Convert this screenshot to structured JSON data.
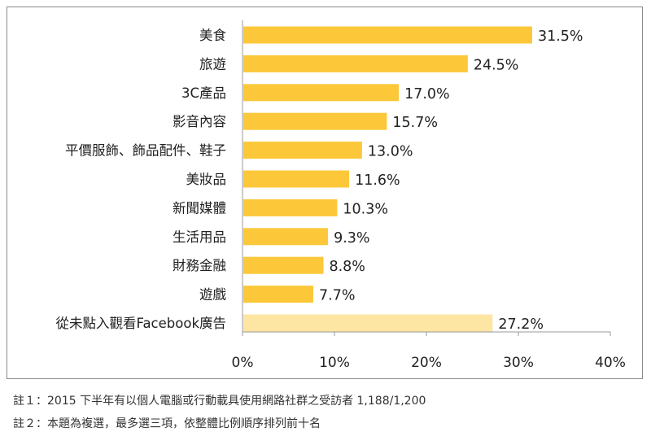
{
  "chart_data": {
    "type": "bar",
    "orientation": "horizontal",
    "categories": [
      "美食",
      "旅遊",
      "3C產品",
      "影音內容",
      "平價服飾、飾品配件、鞋子",
      "美妝品",
      "新聞媒體",
      "生活用品",
      "財務金融",
      "遊戲",
      "從未點入觀看Facebook廣告"
    ],
    "values": [
      31.5,
      24.5,
      17.0,
      15.7,
      13.0,
      11.6,
      10.3,
      9.3,
      8.8,
      7.7,
      27.2
    ],
    "value_labels": [
      "31.5%",
      "24.5%",
      "17.0%",
      "15.7%",
      "13.0%",
      "11.6%",
      "10.3%",
      "9.3%",
      "8.8%",
      "7.7%",
      "27.2%"
    ],
    "bar_colors": [
      "#fcc83a",
      "#fcc83a",
      "#fcc83a",
      "#fcc83a",
      "#fcc83a",
      "#fcc83a",
      "#fcc83a",
      "#fcc83a",
      "#fcc83a",
      "#fcc83a",
      "#fde5a3"
    ],
    "xlim": [
      0,
      40
    ],
    "xticks": [
      0,
      10,
      20,
      30,
      40
    ],
    "xtick_labels": [
      "0%",
      "10%",
      "20%",
      "30%",
      "40%"
    ],
    "grid": false,
    "legend": "none",
    "title": "",
    "xlabel": "",
    "ylabel": ""
  },
  "notes": {
    "note1": "註１：2015 下半年有以個人電腦或行動載具使用網路社群之受訪者 1,188/1,200",
    "note2": "註２：本題為複選，最多選三項，依整體比例順序排列前十名"
  }
}
